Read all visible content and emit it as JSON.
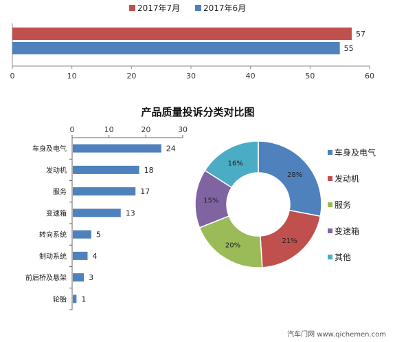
{
  "chart_data": [
    {
      "type": "bar",
      "orientation": "horizontal",
      "series": [
        {
          "name": "2017年7月",
          "values": [
            57
          ],
          "color": "#c0504d"
        },
        {
          "name": "2017年6月",
          "values": [
            55
          ],
          "color": "#4f81bd"
        }
      ],
      "xlim": [
        0,
        60
      ],
      "ticks": [
        "0",
        "10",
        "20",
        "30",
        "40",
        "50",
        "60"
      ],
      "legend": "top-center",
      "grid": false
    },
    {
      "type": "bar",
      "orientation": "horizontal",
      "title": "产品质量投诉分类对比图",
      "categories": [
        "车身及电气",
        "发动机",
        "服务",
        "变速箱",
        "转向系统",
        "制动系统",
        "前后桥及悬架",
        "轮胎"
      ],
      "values": [
        24,
        18,
        17,
        13,
        5,
        4,
        3,
        1
      ],
      "color": "#4f81bd",
      "xlim": [
        0,
        30
      ],
      "ticks": [
        "0",
        "10",
        "20",
        "30"
      ],
      "axis_position": "top",
      "grid": false
    },
    {
      "type": "pie",
      "donut": true,
      "slices": [
        {
          "label": "车身及电气",
          "value": 28,
          "text": "28%",
          "color": "#4f81bd"
        },
        {
          "label": "发动机",
          "value": 21,
          "text": "21%",
          "color": "#c0504d"
        },
        {
          "label": "服务",
          "value": 20,
          "text": "20%",
          "color": "#9bbb59"
        },
        {
          "label": "变速箱",
          "value": 15,
          "text": "15%",
          "color": "#8064a2"
        },
        {
          "label": "其他",
          "value": 16,
          "text": "16%",
          "color": "#4bacc6"
        }
      ],
      "legend": "right"
    }
  ],
  "watermark": {
    "text": "汽车门网 www.qichemen.com"
  }
}
